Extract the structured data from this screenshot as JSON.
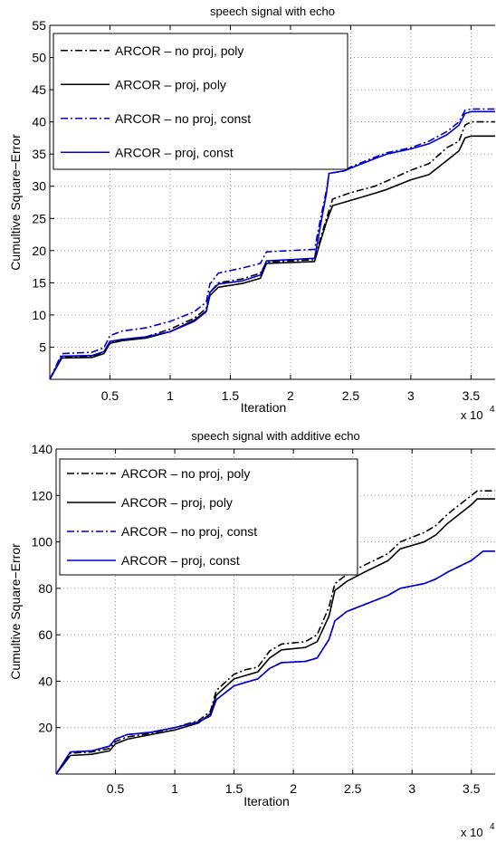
{
  "chart_data": [
    {
      "type": "line",
      "title": "speech signal with echo",
      "xlabel": "Iteration",
      "ylabel": "Cumultive Square−Error",
      "x_multiplier": "x 10",
      "x_exponent": "4",
      "xlim": [
        0,
        3.7
      ],
      "ylim": [
        0,
        55
      ],
      "xticks": [
        0.5,
        1,
        1.5,
        2,
        2.5,
        3,
        3.5
      ],
      "xtick_labels": [
        "0.5",
        "1",
        "1.5",
        "2",
        "2.5",
        "3",
        "3.5"
      ],
      "yticks": [
        5,
        10,
        15,
        20,
        25,
        30,
        35,
        40,
        45,
        50,
        55
      ],
      "ytick_labels": [
        "5",
        "10",
        "15",
        "20",
        "25",
        "30",
        "35",
        "40",
        "45",
        "50",
        "55"
      ],
      "grid": true,
      "legend_position": "top-left",
      "series": [
        {
          "name": "ARCOR – no proj, poly",
          "color": "#000000",
          "dash": "dashdot",
          "points": [
            [
              0,
              0
            ],
            [
              0.1,
              3.5
            ],
            [
              0.35,
              3.6
            ],
            [
              0.45,
              4.2
            ],
            [
              0.5,
              5.8
            ],
            [
              0.6,
              6.2
            ],
            [
              0.8,
              6.6
            ],
            [
              1.0,
              7.8
            ],
            [
              1.2,
              9.5
            ],
            [
              1.3,
              11.0
            ],
            [
              1.33,
              13.5
            ],
            [
              1.4,
              15.0
            ],
            [
              1.6,
              15.6
            ],
            [
              1.75,
              16.5
            ],
            [
              1.8,
              18.2
            ],
            [
              2.2,
              18.6
            ],
            [
              2.25,
              22.0
            ],
            [
              2.3,
              25.0
            ],
            [
              2.35,
              28.0
            ],
            [
              2.5,
              29.0
            ],
            [
              2.7,
              30.0
            ],
            [
              2.8,
              30.8
            ],
            [
              3.0,
              32.5
            ],
            [
              3.15,
              33.5
            ],
            [
              3.3,
              36.0
            ],
            [
              3.4,
              37.0
            ],
            [
              3.45,
              39.5
            ],
            [
              3.5,
              40.0
            ],
            [
              3.7,
              40.0
            ]
          ]
        },
        {
          "name": "ARCOR – proj, poly",
          "color": "#000000",
          "dash": "solid",
          "points": [
            [
              0,
              0
            ],
            [
              0.1,
              3.3
            ],
            [
              0.35,
              3.4
            ],
            [
              0.45,
              4.0
            ],
            [
              0.5,
              5.6
            ],
            [
              0.6,
              6.0
            ],
            [
              0.8,
              6.4
            ],
            [
              1.0,
              7.4
            ],
            [
              1.2,
              9.2
            ],
            [
              1.3,
              10.6
            ],
            [
              1.33,
              13.0
            ],
            [
              1.4,
              14.3
            ],
            [
              1.6,
              14.9
            ],
            [
              1.75,
              15.7
            ],
            [
              1.8,
              18.0
            ],
            [
              2.2,
              18.3
            ],
            [
              2.25,
              21.5
            ],
            [
              2.3,
              24.5
            ],
            [
              2.35,
              27.0
            ],
            [
              2.5,
              27.8
            ],
            [
              2.7,
              28.9
            ],
            [
              2.8,
              29.5
            ],
            [
              3.0,
              31.0
            ],
            [
              3.15,
              31.8
            ],
            [
              3.3,
              34.0
            ],
            [
              3.4,
              35.5
            ],
            [
              3.45,
              37.5
            ],
            [
              3.5,
              37.8
            ],
            [
              3.7,
              37.8
            ]
          ]
        },
        {
          "name": "ARCOR – no proj, const",
          "color": "#0000cc",
          "dash": "dashdot",
          "points": [
            [
              0,
              0
            ],
            [
              0.1,
              4.0
            ],
            [
              0.35,
              4.2
            ],
            [
              0.45,
              4.9
            ],
            [
              0.5,
              6.8
            ],
            [
              0.6,
              7.5
            ],
            [
              0.8,
              8.0
            ],
            [
              1.0,
              9.0
            ],
            [
              1.2,
              10.5
            ],
            [
              1.3,
              12.0
            ],
            [
              1.33,
              14.8
            ],
            [
              1.4,
              16.5
            ],
            [
              1.6,
              17.3
            ],
            [
              1.75,
              18.0
            ],
            [
              1.8,
              19.8
            ],
            [
              2.2,
              20.2
            ],
            [
              2.25,
              25.0
            ],
            [
              2.3,
              29.5
            ],
            [
              2.32,
              32.0
            ],
            [
              2.45,
              32.4
            ],
            [
              2.5,
              33.0
            ],
            [
              2.7,
              34.5
            ],
            [
              2.8,
              35.2
            ],
            [
              3.0,
              36.0
            ],
            [
              3.15,
              37.0
            ],
            [
              3.3,
              38.5
            ],
            [
              3.4,
              40.0
            ],
            [
              3.45,
              41.8
            ],
            [
              3.5,
              42.0
            ],
            [
              3.7,
              42.0
            ]
          ]
        },
        {
          "name": "ARCOR – proj, const",
          "color": "#0000cc",
          "dash": "solid",
          "points": [
            [
              0,
              0
            ],
            [
              0.1,
              3.6
            ],
            [
              0.35,
              3.7
            ],
            [
              0.45,
              4.3
            ],
            [
              0.5,
              5.9
            ],
            [
              0.6,
              6.2
            ],
            [
              0.8,
              6.6
            ],
            [
              1.0,
              7.4
            ],
            [
              1.2,
              9.0
            ],
            [
              1.3,
              10.5
            ],
            [
              1.33,
              13.5
            ],
            [
              1.4,
              14.8
            ],
            [
              1.6,
              15.3
            ],
            [
              1.75,
              16.2
            ],
            [
              1.8,
              18.4
            ],
            [
              2.2,
              18.8
            ],
            [
              2.25,
              24.0
            ],
            [
              2.3,
              29.0
            ],
            [
              2.32,
              32.0
            ],
            [
              2.45,
              32.4
            ],
            [
              2.5,
              32.8
            ],
            [
              2.7,
              34.3
            ],
            [
              2.8,
              35.0
            ],
            [
              3.0,
              35.8
            ],
            [
              3.15,
              36.6
            ],
            [
              3.3,
              38.0
            ],
            [
              3.4,
              39.5
            ],
            [
              3.45,
              41.3
            ],
            [
              3.5,
              41.6
            ],
            [
              3.7,
              41.6
            ]
          ]
        }
      ]
    },
    {
      "type": "line",
      "title": "speech signal with additive echo",
      "xlabel": "Iteration",
      "ylabel": "Cumultive Square−Error",
      "x_multiplier": "x 10",
      "x_exponent": "4",
      "xlim": [
        0,
        3.7
      ],
      "ylim": [
        0,
        140
      ],
      "xticks": [
        0.5,
        1,
        1.5,
        2,
        2.5,
        3,
        3.5
      ],
      "xtick_labels": [
        "0.5",
        "1",
        "1.5",
        "2",
        "2.5",
        "3",
        "3.5"
      ],
      "yticks": [
        20,
        40,
        60,
        80,
        100,
        120,
        140
      ],
      "ytick_labels": [
        "20",
        "40",
        "60",
        "80",
        "100",
        "120",
        "140"
      ],
      "grid": true,
      "legend_position": "top-left",
      "series": [
        {
          "name": "ARCOR – no proj, poly",
          "color": "#000000",
          "dash": "dashdot",
          "points": [
            [
              0,
              0
            ],
            [
              0.12,
              9
            ],
            [
              0.3,
              9.5
            ],
            [
              0.45,
              11
            ],
            [
              0.5,
              14
            ],
            [
              0.6,
              16
            ],
            [
              0.8,
              17.5
            ],
            [
              1.0,
              20
            ],
            [
              1.2,
              23
            ],
            [
              1.3,
              27
            ],
            [
              1.35,
              36
            ],
            [
              1.5,
              43
            ],
            [
              1.6,
              45
            ],
            [
              1.7,
              46
            ],
            [
              1.8,
              53
            ],
            [
              1.9,
              56
            ],
            [
              2.1,
              57
            ],
            [
              2.2,
              60
            ],
            [
              2.3,
              72
            ],
            [
              2.35,
              82
            ],
            [
              2.45,
              86
            ],
            [
              2.6,
              90
            ],
            [
              2.8,
              95
            ],
            [
              2.9,
              100
            ],
            [
              3.1,
              104
            ],
            [
              3.2,
              107
            ],
            [
              3.3,
              112
            ],
            [
              3.5,
              120
            ],
            [
              3.55,
              122
            ],
            [
              3.7,
              122
            ]
          ]
        },
        {
          "name": "ARCOR – proj, poly",
          "color": "#000000",
          "dash": "solid",
          "points": [
            [
              0,
              0
            ],
            [
              0.12,
              8
            ],
            [
              0.3,
              8.5
            ],
            [
              0.45,
              10
            ],
            [
              0.5,
              13
            ],
            [
              0.6,
              15
            ],
            [
              0.8,
              17
            ],
            [
              1.0,
              19
            ],
            [
              1.2,
              22
            ],
            [
              1.3,
              26
            ],
            [
              1.35,
              34
            ],
            [
              1.5,
              41
            ],
            [
              1.6,
              42.5
            ],
            [
              1.7,
              44
            ],
            [
              1.8,
              50
            ],
            [
              1.9,
              53.5
            ],
            [
              2.1,
              54.5
            ],
            [
              2.2,
              57
            ],
            [
              2.3,
              68
            ],
            [
              2.35,
              79
            ],
            [
              2.45,
              83
            ],
            [
              2.6,
              87
            ],
            [
              2.8,
              92
            ],
            [
              2.9,
              97
            ],
            [
              3.1,
              100
            ],
            [
              3.2,
              103
            ],
            [
              3.3,
              108
            ],
            [
              3.5,
              116
            ],
            [
              3.55,
              118.5
            ],
            [
              3.7,
              118.5
            ]
          ]
        },
        {
          "name": "ARCOR – no proj, const",
          "color": "#0000cc",
          "dash": "dashdot",
          "points": [
            [
              0,
              0
            ],
            [
              0.12,
              9.5
            ],
            [
              0.3,
              10
            ],
            [
              0.45,
              12
            ],
            [
              0.5,
              15
            ],
            [
              0.6,
              17
            ],
            [
              0.8,
              18
            ],
            [
              1.0,
              20
            ],
            [
              1.2,
              22.5
            ],
            [
              1.3,
              25
            ],
            [
              1.35,
              32
            ],
            [
              1.5,
              38
            ],
            [
              1.6,
              39.5
            ],
            [
              1.7,
              41
            ],
            [
              1.8,
              45.5
            ],
            [
              1.9,
              48
            ],
            [
              2.1,
              48.5
            ],
            [
              2.2,
              50
            ],
            [
              2.3,
              58
            ],
            [
              2.35,
              66
            ],
            [
              2.45,
              70
            ],
            [
              2.6,
              73
            ],
            [
              2.8,
              77
            ],
            [
              2.9,
              80
            ],
            [
              3.1,
              82
            ],
            [
              3.2,
              84
            ],
            [
              3.3,
              87
            ],
            [
              3.5,
              92
            ],
            [
              3.6,
              96
            ],
            [
              3.7,
              96
            ]
          ]
        },
        {
          "name": "ARCOR – proj, const",
          "color": "#0000cc",
          "dash": "solid",
          "points": [
            [
              0,
              0
            ],
            [
              0.12,
              9.5
            ],
            [
              0.3,
              10
            ],
            [
              0.45,
              12
            ],
            [
              0.5,
              15
            ],
            [
              0.6,
              17
            ],
            [
              0.8,
              18
            ],
            [
              1.0,
              20
            ],
            [
              1.2,
              22.5
            ],
            [
              1.3,
              25
            ],
            [
              1.35,
              32
            ],
            [
              1.5,
              38
            ],
            [
              1.6,
              39.5
            ],
            [
              1.7,
              41
            ],
            [
              1.8,
              45.5
            ],
            [
              1.9,
              48
            ],
            [
              2.1,
              48.5
            ],
            [
              2.2,
              50
            ],
            [
              2.3,
              58
            ],
            [
              2.35,
              66
            ],
            [
              2.45,
              70
            ],
            [
              2.6,
              73
            ],
            [
              2.8,
              77
            ],
            [
              2.9,
              80
            ],
            [
              3.1,
              82
            ],
            [
              3.2,
              84
            ],
            [
              3.3,
              87
            ],
            [
              3.5,
              92
            ],
            [
              3.6,
              96
            ],
            [
              3.7,
              96
            ]
          ]
        }
      ]
    }
  ]
}
